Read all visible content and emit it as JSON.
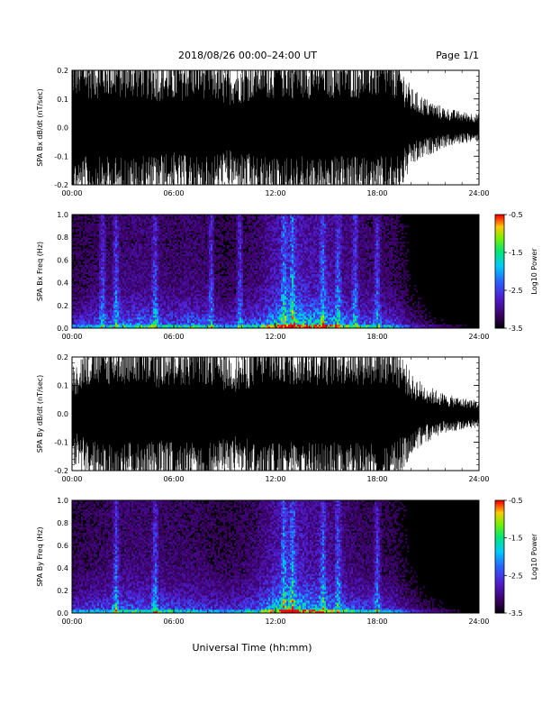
{
  "header": {
    "title": "2018/08/26  00:00–24:00 UT",
    "page": "Page 1/1"
  },
  "footer": {
    "xlabel": "Universal Time (hh:mm)"
  },
  "chart_data": [
    {
      "type": "line",
      "ylabel": "SPA Bx dB/dt (nT/sec)",
      "ylim": [
        -0.2,
        0.2
      ],
      "yticks": [
        "-0.2",
        "-0.1",
        "0.0",
        "0.1",
        "0.2"
      ],
      "xlim": [
        0,
        24
      ],
      "xticks": [
        "00:00",
        "06:00",
        "12:00",
        "18:00",
        "24:00"
      ],
      "envelope_hours": [
        0,
        1,
        2,
        3,
        4,
        5,
        6,
        7,
        8,
        9,
        10,
        11,
        12,
        13,
        14,
        15,
        16,
        17,
        18,
        19,
        20,
        21,
        22,
        23,
        24
      ],
      "envelope_amplitude": [
        0.2,
        0.2,
        0.2,
        0.2,
        0.2,
        0.18,
        0.17,
        0.2,
        0.2,
        0.15,
        0.17,
        0.2,
        0.2,
        0.2,
        0.2,
        0.2,
        0.2,
        0.2,
        0.2,
        0.2,
        0.1,
        0.07,
        0.05,
        0.04,
        0.035
      ]
    },
    {
      "type": "heatmap",
      "ylabel": "SPA Bx Freq (Hz)",
      "ylim": [
        0.0,
        1.0
      ],
      "yticks": [
        "0.0",
        "0.2",
        "0.4",
        "0.6",
        "0.8",
        "1.0"
      ],
      "xlim": [
        0,
        24
      ],
      "xticks": [
        "00:00",
        "06:00",
        "12:00",
        "18:00",
        "24:00"
      ],
      "colorbar": {
        "label": "Log10 Power",
        "ticks": [
          "-0.5",
          "-1.5",
          "-2.5",
          "-3.5"
        ],
        "range": [
          -3.5,
          -0.5
        ]
      },
      "activity_hours": [
        0,
        1,
        2,
        3,
        4,
        5,
        6,
        7,
        8,
        9,
        10,
        11,
        12,
        13,
        14,
        15,
        16,
        17,
        18,
        19,
        20,
        21,
        22,
        23,
        24
      ],
      "activity_level": [
        0.45,
        0.5,
        0.55,
        0.6,
        0.65,
        0.6,
        0.55,
        0.6,
        0.55,
        0.45,
        0.5,
        0.6,
        0.85,
        0.95,
        0.85,
        0.8,
        0.7,
        0.6,
        0.55,
        0.5,
        0.3,
        0.2,
        0.15,
        0.1,
        0.08
      ],
      "bright_bands_hours": [
        1.8,
        2.6,
        4.9,
        8.2,
        9.9,
        12.5,
        13.0,
        14.8,
        15.7,
        16.7,
        18.0
      ]
    },
    {
      "type": "line",
      "ylabel": "SPA By dB/dt (nT/sec)",
      "ylim": [
        -0.2,
        0.2
      ],
      "yticks": [
        "-0.2",
        "-0.1",
        "0.0",
        "0.1",
        "0.2"
      ],
      "xlim": [
        0,
        24
      ],
      "xticks": [
        "00:00",
        "06:00",
        "12:00",
        "18:00",
        "24:00"
      ],
      "envelope_hours": [
        0,
        1,
        2,
        3,
        4,
        5,
        6,
        7,
        8,
        9,
        10,
        11,
        12,
        13,
        14,
        15,
        16,
        17,
        18,
        19,
        20,
        21,
        22,
        23,
        24
      ],
      "envelope_amplitude": [
        0.12,
        0.18,
        0.2,
        0.2,
        0.2,
        0.18,
        0.2,
        0.2,
        0.2,
        0.16,
        0.15,
        0.2,
        0.2,
        0.2,
        0.2,
        0.2,
        0.2,
        0.2,
        0.2,
        0.2,
        0.1,
        0.07,
        0.05,
        0.04,
        0.035
      ]
    },
    {
      "type": "heatmap",
      "ylabel": "SPA By Freq (Hz)",
      "ylim": [
        0.0,
        1.0
      ],
      "yticks": [
        "0.0",
        "0.2",
        "0.4",
        "0.6",
        "0.8",
        "1.0"
      ],
      "xlim": [
        0,
        24
      ],
      "xticks": [
        "00:00",
        "06:00",
        "12:00",
        "18:00",
        "24:00"
      ],
      "colorbar": {
        "label": "Log10 Power",
        "ticks": [
          "-0.5",
          "-1.5",
          "-2.5",
          "-3.5"
        ],
        "range": [
          -3.5,
          -0.5
        ]
      },
      "activity_hours": [
        0,
        1,
        2,
        3,
        4,
        5,
        6,
        7,
        8,
        9,
        10,
        11,
        12,
        13,
        14,
        15,
        16,
        17,
        18,
        19,
        20,
        21,
        22,
        23,
        24
      ],
      "activity_level": [
        0.45,
        0.5,
        0.55,
        0.6,
        0.6,
        0.6,
        0.55,
        0.55,
        0.5,
        0.45,
        0.5,
        0.6,
        0.85,
        0.95,
        0.8,
        0.75,
        0.65,
        0.55,
        0.5,
        0.45,
        0.3,
        0.2,
        0.15,
        0.1,
        0.08
      ],
      "bright_bands_hours": [
        2.6,
        4.9,
        12.5,
        13.0,
        14.8,
        15.7,
        18.0
      ]
    }
  ]
}
